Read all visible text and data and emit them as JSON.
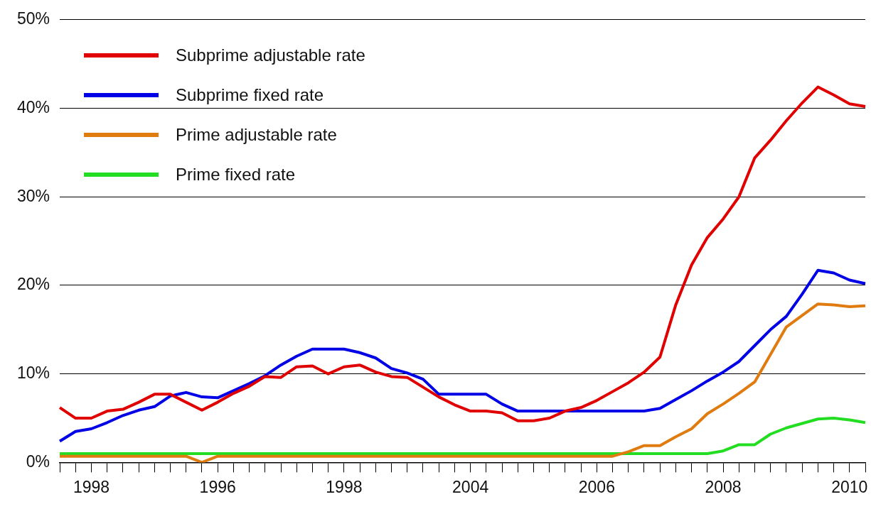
{
  "chart_data": {
    "type": "line",
    "categories": [
      null,
      null,
      "1998",
      null,
      null,
      null,
      null,
      null,
      null,
      null,
      "1996",
      null,
      null,
      null,
      null,
      null,
      null,
      null,
      "1998",
      null,
      null,
      null,
      null,
      null,
      null,
      null,
      "2004",
      null,
      null,
      null,
      null,
      null,
      null,
      null,
      "2006",
      null,
      null,
      null,
      null,
      null,
      null,
      null,
      "2008",
      null,
      null,
      null,
      null,
      null,
      null,
      null,
      "2010",
      null
    ],
    "series": [
      {
        "name": "Subprime adjustable rate",
        "color": "#e00000",
        "values": [
          6.2,
          5.0,
          5.0,
          5.8,
          6.0,
          6.8,
          7.7,
          7.7,
          6.8,
          5.9,
          6.8,
          7.8,
          8.6,
          9.7,
          9.6,
          10.8,
          10.9,
          10.0,
          10.8,
          11.0,
          10.2,
          9.7,
          9.6,
          8.5,
          7.4,
          6.5,
          5.8,
          5.8,
          5.6,
          4.7,
          4.7,
          5.0,
          5.8,
          6.2,
          7.0,
          8.0,
          9.0,
          10.2,
          11.9,
          17.8,
          22.3,
          25.4,
          27.5,
          30.0,
          34.4,
          36.4,
          38.6,
          40.6,
          42.4,
          41.5,
          40.5,
          40.2
        ]
      },
      {
        "name": "Subprime fixed rate",
        "color": "#0000e6",
        "values": [
          2.4,
          3.5,
          3.8,
          4.5,
          5.3,
          5.9,
          6.3,
          7.5,
          7.9,
          7.4,
          7.3,
          8.1,
          8.9,
          9.8,
          11.0,
          12.0,
          12.8,
          12.8,
          12.8,
          12.4,
          11.8,
          10.6,
          10.1,
          9.4,
          7.7,
          7.7,
          7.7,
          7.7,
          6.6,
          5.8,
          5.8,
          5.8,
          5.8,
          5.8,
          5.8,
          5.8,
          5.8,
          5.8,
          6.1,
          7.1,
          8.1,
          9.2,
          10.2,
          11.4,
          13.2,
          15.0,
          16.5,
          19.0,
          21.7,
          21.4,
          20.6,
          20.2
        ]
      },
      {
        "name": "Prime adjustable rate",
        "color": "#e07b10",
        "values": [
          0.7,
          0.7,
          0.7,
          0.7,
          0.7,
          0.7,
          0.7,
          0.7,
          0.7,
          0.0,
          0.7,
          0.7,
          0.7,
          0.7,
          0.7,
          0.7,
          0.7,
          0.7,
          0.7,
          0.7,
          0.7,
          0.7,
          0.7,
          0.7,
          0.7,
          0.7,
          0.7,
          0.7,
          0.7,
          0.7,
          0.7,
          0.7,
          0.7,
          0.7,
          0.7,
          0.7,
          1.2,
          1.9,
          1.9,
          2.9,
          3.8,
          5.5,
          6.6,
          7.8,
          9.1,
          12.2,
          15.3,
          16.6,
          17.9,
          17.8,
          17.6,
          17.7
        ]
      },
      {
        "name": "Prime fixed rate",
        "color": "#22dd22",
        "values": [
          1.0,
          1.0,
          1.0,
          1.0,
          1.0,
          1.0,
          1.0,
          1.0,
          1.0,
          1.0,
          1.0,
          1.0,
          1.0,
          1.0,
          1.0,
          1.0,
          1.0,
          1.0,
          1.0,
          1.0,
          1.0,
          1.0,
          1.0,
          1.0,
          1.0,
          1.0,
          1.0,
          1.0,
          1.0,
          1.0,
          1.0,
          1.0,
          1.0,
          1.0,
          1.0,
          1.0,
          1.0,
          1.0,
          1.0,
          1.0,
          1.0,
          1.0,
          1.3,
          2.0,
          2.0,
          3.2,
          3.9,
          4.4,
          4.9,
          5.0,
          4.8,
          4.5
        ]
      }
    ],
    "ylim": [
      0,
      50
    ],
    "yticks": [
      {
        "value": 0,
        "label": "0%"
      },
      {
        "value": 10,
        "label": "10%"
      },
      {
        "value": 20,
        "label": "20%"
      },
      {
        "value": 30,
        "label": "30%"
      },
      {
        "value": 40,
        "label": "40%"
      },
      {
        "value": 50,
        "label": "50%"
      }
    ],
    "grid": "y",
    "legend": "top left",
    "marker": "none",
    "line_style": "solid"
  }
}
